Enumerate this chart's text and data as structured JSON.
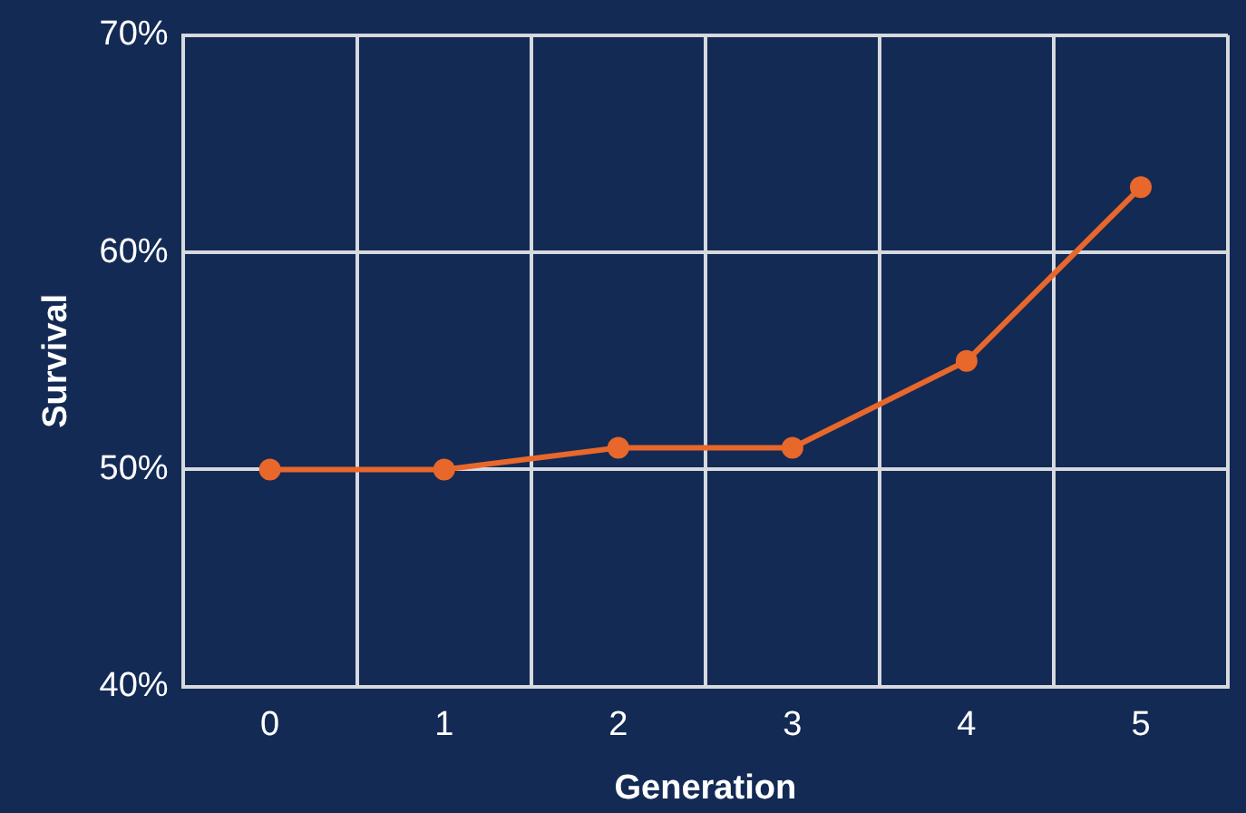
{
  "chart_data": {
    "type": "line",
    "xlabel": "Generation",
    "ylabel": "Survival",
    "categories": [
      "0",
      "1",
      "2",
      "3",
      "4",
      "5"
    ],
    "series": [
      {
        "color": "#e8672b",
        "values": [
          50,
          50,
          51,
          51,
          55,
          63
        ]
      }
    ],
    "ylim": [
      40,
      70
    ],
    "yticks": [
      {
        "value": 40,
        "label": "40%"
      },
      {
        "value": 50,
        "label": "50%"
      },
      {
        "value": 60,
        "label": "60%"
      },
      {
        "value": 70,
        "label": "70%"
      }
    ],
    "grid": true,
    "marker": "circle",
    "line_style": "solid"
  }
}
